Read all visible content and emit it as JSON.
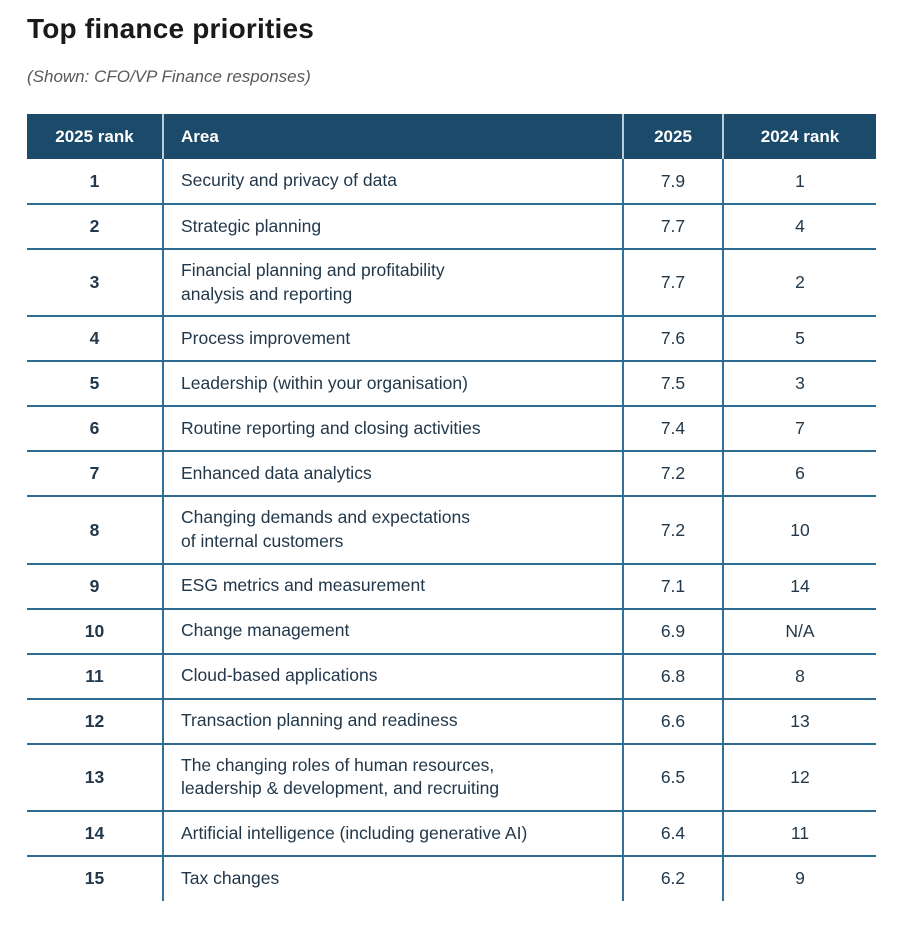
{
  "page": {
    "title": "Top finance priorities",
    "subtitle": "(Shown: CFO/VP Finance responses)"
  },
  "colors": {
    "header_background": "#1b4a6a",
    "header_text": "#ffffff",
    "header_separator": "#b9cdd9",
    "grid_line": "#2e6b91",
    "body_text": "#22384a",
    "subtitle_text": "#595959"
  },
  "table": {
    "headers": {
      "rank_2025": "2025 rank",
      "area": "Area",
      "score_2025": "2025",
      "rank_2024": "2024 rank"
    },
    "rows": [
      {
        "rank_2025": "1",
        "area": "Security and privacy of data",
        "score_2025": "7.9",
        "rank_2024": "1"
      },
      {
        "rank_2025": "2",
        "area": "Strategic planning",
        "score_2025": "7.7",
        "rank_2024": "4"
      },
      {
        "rank_2025": "3",
        "area": "Financial planning and profitability\nanalysis and reporting",
        "score_2025": "7.7",
        "rank_2024": "2"
      },
      {
        "rank_2025": "4",
        "area": "Process improvement",
        "score_2025": "7.6",
        "rank_2024": "5"
      },
      {
        "rank_2025": "5",
        "area": "Leadership (within your organisation)",
        "score_2025": "7.5",
        "rank_2024": "3"
      },
      {
        "rank_2025": "6",
        "area": "Routine reporting and closing activities",
        "score_2025": "7.4",
        "rank_2024": "7"
      },
      {
        "rank_2025": "7",
        "area": "Enhanced data analytics",
        "score_2025": "7.2",
        "rank_2024": "6"
      },
      {
        "rank_2025": "8",
        "area": "Changing demands and expectations\nof internal customers",
        "score_2025": "7.2",
        "rank_2024": "10"
      },
      {
        "rank_2025": "9",
        "area": "ESG metrics and measurement",
        "score_2025": "7.1",
        "rank_2024": "14"
      },
      {
        "rank_2025": "10",
        "area": "Change management",
        "score_2025": "6.9",
        "rank_2024": "N/A"
      },
      {
        "rank_2025": "11",
        "area": "Cloud-based applications",
        "score_2025": "6.8",
        "rank_2024": "8"
      },
      {
        "rank_2025": "12",
        "area": "Transaction planning and readiness",
        "score_2025": "6.6",
        "rank_2024": "13"
      },
      {
        "rank_2025": "13",
        "area": "The changing roles of human resources,\nleadership & development, and recruiting",
        "score_2025": "6.5",
        "rank_2024": "12"
      },
      {
        "rank_2025": "14",
        "area": "Artificial intelligence (including generative AI)",
        "score_2025": "6.4",
        "rank_2024": "11"
      },
      {
        "rank_2025": "15",
        "area": "Tax changes",
        "score_2025": "6.2",
        "rank_2024": "9"
      }
    ]
  }
}
